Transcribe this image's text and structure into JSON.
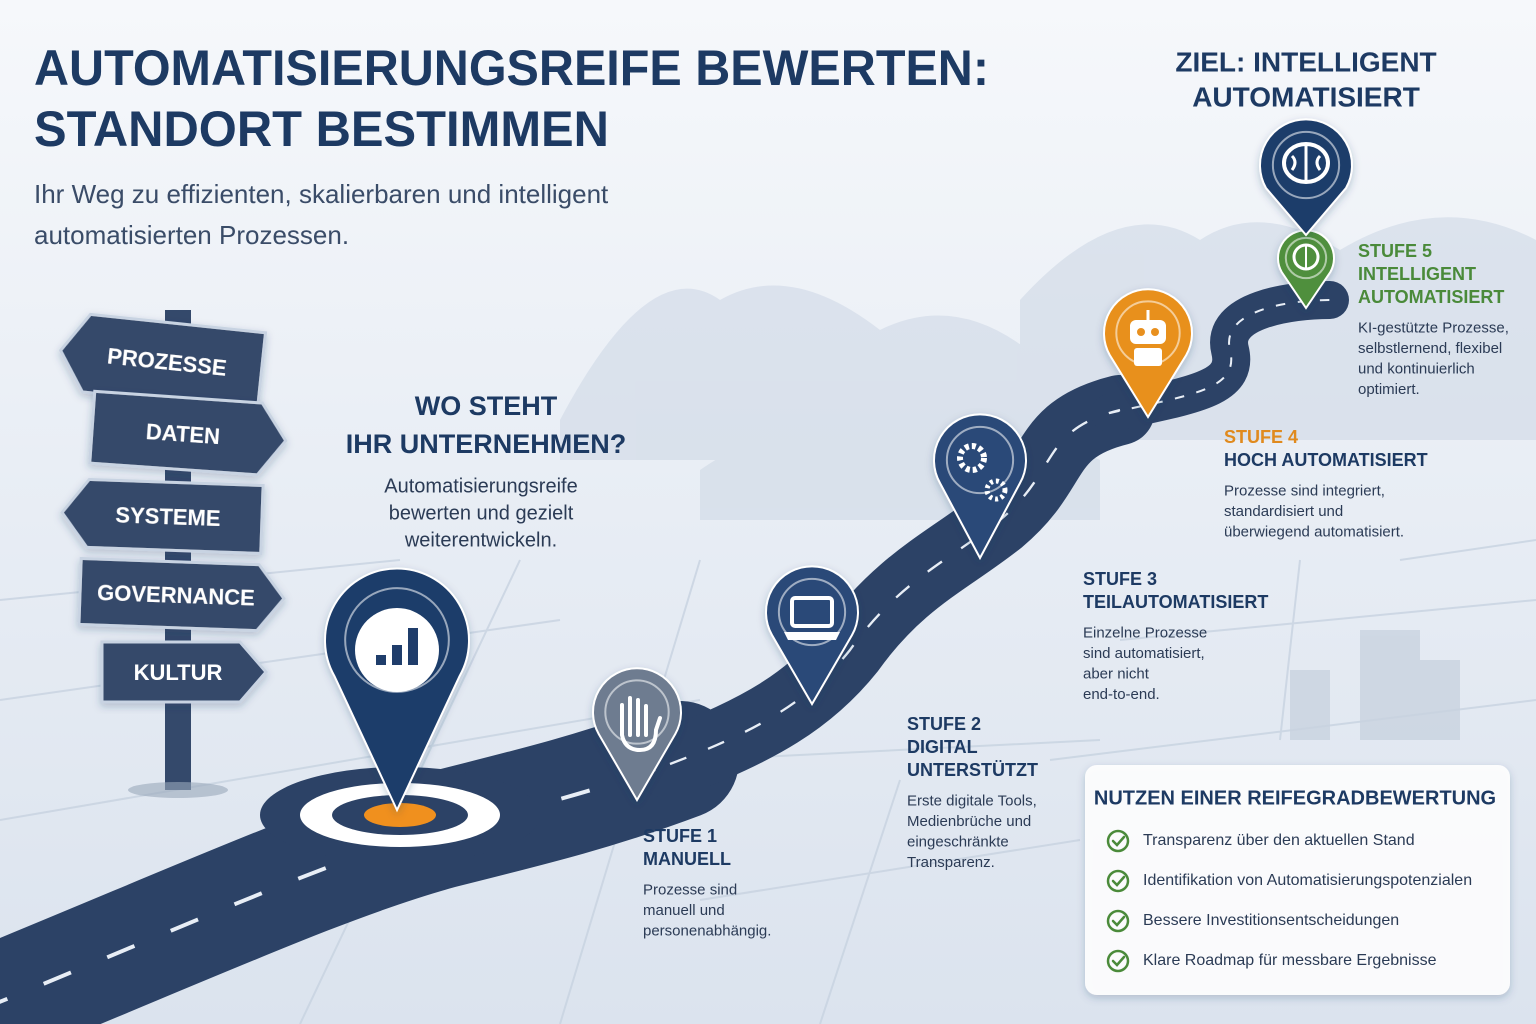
{
  "header": {
    "title": [
      "AUTOMATISIERUNGSREIFE BEWERTEN:",
      "STANDORT BESTIMMEN"
    ],
    "subtitle": [
      "Ihr Weg zu effizienten, skalierbaren und intelligent",
      "automatisierten Prozessen."
    ]
  },
  "signpost": [
    "PROZESSE",
    "DATEN",
    "SYSTEME",
    "GOVERNANCE",
    "KULTUR"
  ],
  "callout": {
    "title": [
      "WO STEHT",
      "IHR UNTERNEHMEN?"
    ],
    "text": [
      "Automatisierungsreife",
      "bewerten und gezielt",
      "weiterentwickeln."
    ]
  },
  "goal": [
    "ZIEL: INTELLIGENT",
    "AUTOMATISIERT"
  ],
  "stages": [
    {
      "label": "STUFE 1",
      "name": [
        "MANUELL"
      ],
      "description": [
        "Prozesse sind",
        "manuell und",
        "personenabhängig."
      ]
    },
    {
      "label": "STUFE 2",
      "name": [
        "DIGITAL",
        "UNTERSTÜTZT"
      ],
      "description": [
        "Erste digitale Tools,",
        "Medienbrüche und",
        "eingeschränkte",
        "Transparenz."
      ]
    },
    {
      "label": "STUFE 3",
      "name": [
        "TEILAUTOMATISIERT"
      ],
      "description": [
        "Einzelne Prozesse",
        "sind automatisiert,",
        "aber nicht",
        "end-to-end."
      ]
    },
    {
      "label": "STUFE 4",
      "name": [
        "HOCH AUTOMATISIERT"
      ],
      "description": [
        "Prozesse sind integriert,",
        "standardisiert und",
        "überwiegend automatisiert."
      ]
    },
    {
      "label": "STUFE 5",
      "name": [
        "INTELLIGENT",
        "AUTOMATISIERT"
      ],
      "description": [
        "KI-gestützte Prozesse,",
        "selbstlernend, flexibel",
        "und kontinuierlich",
        "optimiert."
      ]
    }
  ],
  "benefits": {
    "title": "NUTZEN EINER REIFEGRADBEWERTUNG",
    "items": [
      "Transparenz über den aktuellen Stand",
      "Identifikation von Automatisierungspotenzialen",
      "Bessere Investitionsentscheidungen",
      "Klare Roadmap für messbare Ergebnisse"
    ]
  }
}
